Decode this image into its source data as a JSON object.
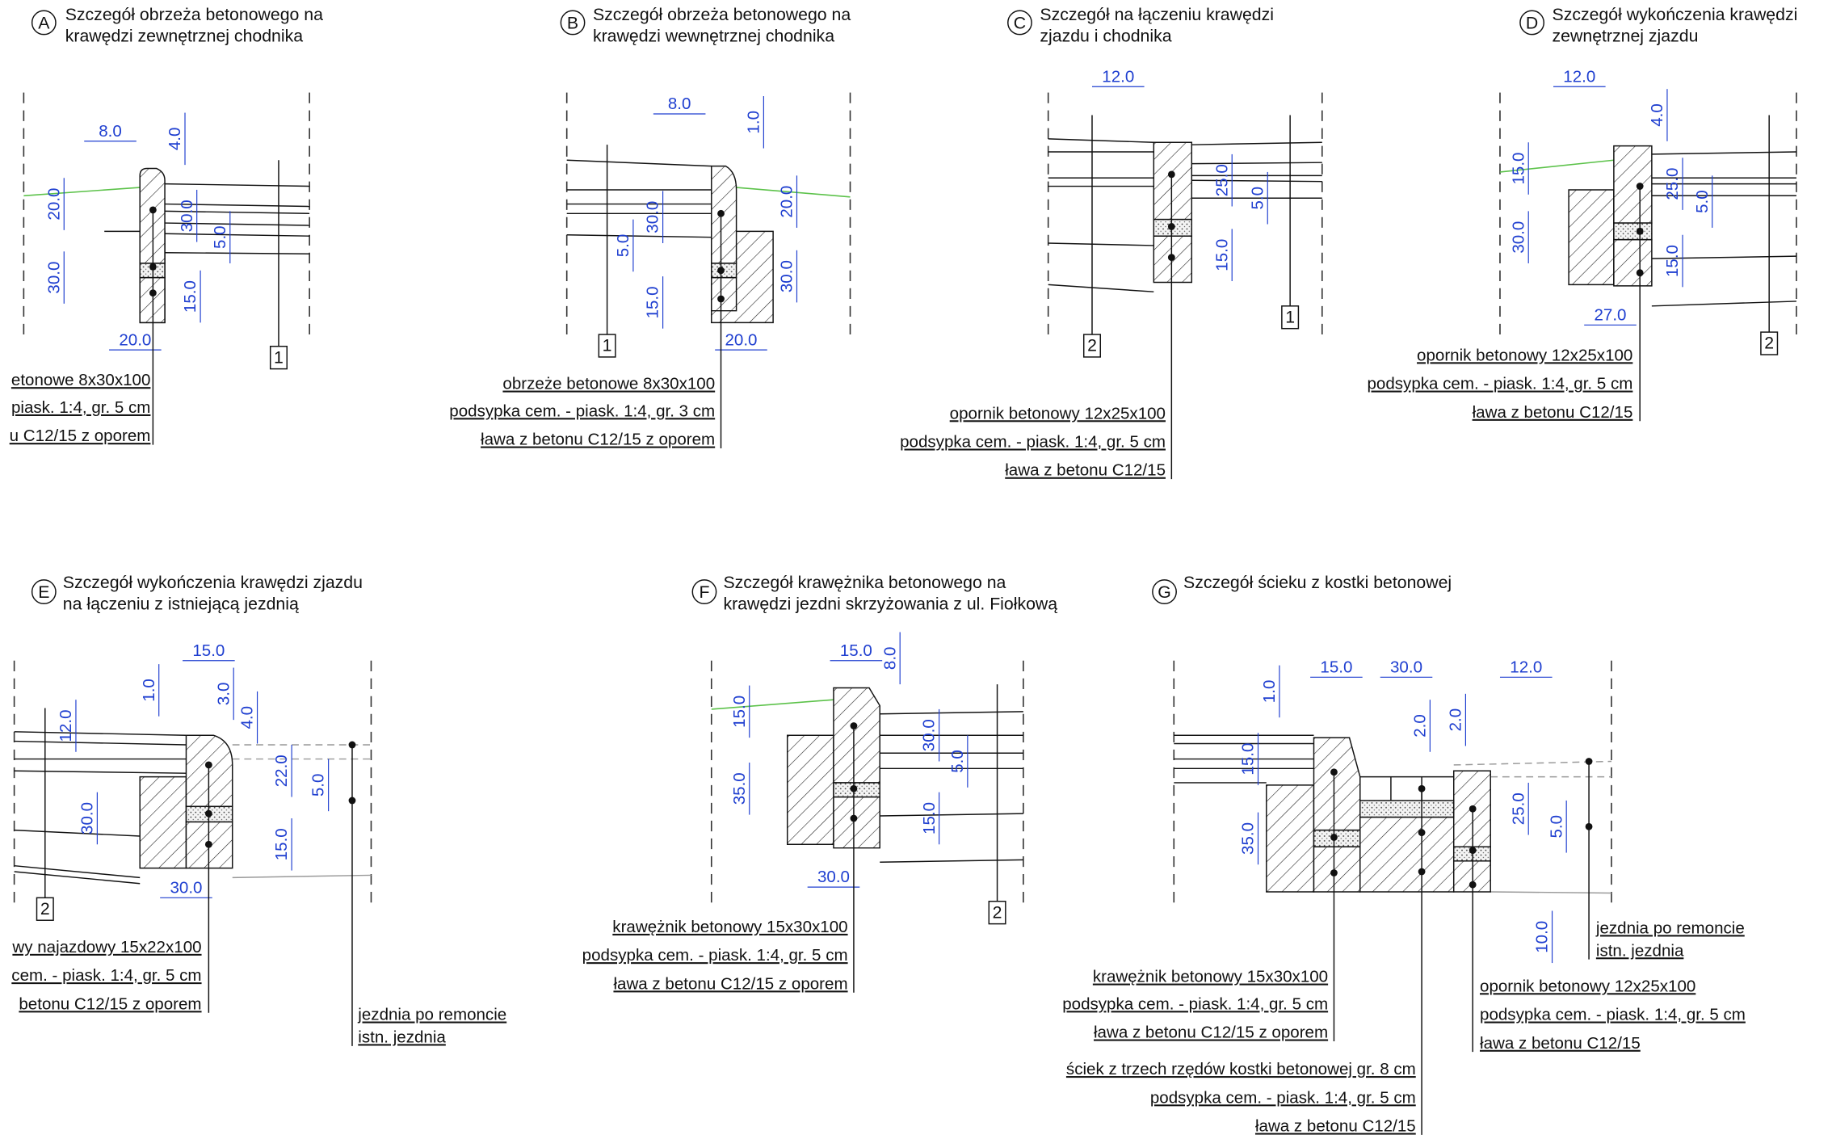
{
  "details": [
    {
      "letter": "A",
      "title": [
        "Szczegół obrzeża betonowego na",
        "krawędzi zewnętrznej chodnika"
      ],
      "dimensions": [
        "8.0",
        "4.0",
        "20.0",
        "30.0",
        "5.0",
        "30.0",
        "15.0",
        "20.0"
      ],
      "labels": [
        [
          "etonowe 8x30x100",
          "piask. 1:4, gr. 5 cm",
          "u C12/15 z oporem"
        ]
      ],
      "markers": [
        "1"
      ]
    },
    {
      "letter": "B",
      "title": [
        "Szczegół obrzeża betonowego na",
        "krawędzi wewnętrznej chodnika"
      ],
      "dimensions": [
        "8.0",
        "1.0",
        "30.0",
        "20.0",
        "5.0",
        "15.0",
        "30.0",
        "20.0"
      ],
      "labels": [
        [
          "obrzeże betonowe 8x30x100",
          "podsypka cem. - piask. 1:4, gr. 3 cm",
          "ława z betonu C12/15 z oporem"
        ]
      ],
      "markers": [
        "1"
      ]
    },
    {
      "letter": "C",
      "title": [
        "Szczegół na łączeniu krawędzi",
        "zjazdu i chodnika"
      ],
      "dimensions": [
        "12.0",
        "25.0",
        "5.0",
        "15.0"
      ],
      "labels": [
        [
          "opornik betonowy 12x25x100",
          "podsypka cem. - piask. 1:4, gr. 5 cm",
          "ława z betonu C12/15"
        ]
      ],
      "markers": [
        "2",
        "1"
      ]
    },
    {
      "letter": "D",
      "title": [
        "Szczegół wykończenia krawędzi",
        "zewnętrznej zjazdu"
      ],
      "dimensions": [
        "12.0",
        "4.0",
        "15.0",
        "25.0",
        "5.0",
        "30.0",
        "15.0",
        "27.0"
      ],
      "labels": [
        [
          "opornik betonowy 12x25x100",
          "podsypka cem. - piask. 1:4, gr. 5 cm",
          "ława z betonu C12/15"
        ]
      ],
      "markers": [
        "2"
      ]
    },
    {
      "letter": "E",
      "title": [
        "Szczegół wykończenia krawędzi zjazdu",
        "na łączeniu z istniejącą jezdnią"
      ],
      "dimensions": [
        "15.0",
        "1.0",
        "3.0",
        "12.0",
        "4.0",
        "22.0",
        "5.0",
        "30.0",
        "15.0",
        "30.0"
      ],
      "labels": [
        [
          "wy najazdowy 15x22x100",
          "cem. - piask. 1:4, gr. 5 cm",
          "betonu C12/15 z oporem"
        ],
        [
          "jezdnia po remoncie",
          "istn. jezdnia"
        ]
      ],
      "markers": [
        "2"
      ]
    },
    {
      "letter": "F",
      "title": [
        "Szczegół krawężnika betonowego na",
        "krawędzi jezdni skrzyżowania z ul. Fiołkową"
      ],
      "dimensions": [
        "15.0",
        "8.0",
        "15.0",
        "30.0",
        "5.0",
        "35.0",
        "15.0",
        "30.0"
      ],
      "labels": [
        [
          "krawężnik betonowy 15x30x100",
          "podsypka cem. - piask. 1:4, gr. 5 cm",
          "ława z betonu C12/15 z oporem"
        ]
      ],
      "markers": [
        "2"
      ]
    },
    {
      "letter": "G",
      "title": [
        "Szczegół ścieku z kostki betonowej"
      ],
      "dimensions": [
        "1.0",
        "15.0",
        "30.0",
        "12.0",
        "2.0",
        "2.0",
        "15.0",
        "25.0",
        "5.0",
        "35.0",
        "10.0"
      ],
      "labels": [
        [
          "krawężnik betonowy 15x30x100",
          "podsypka cem. - piask. 1:4, gr. 5 cm",
          "ława z betonu C12/15 z oporem"
        ],
        [
          "ściek z trzech rzędów kostki betonowej gr. 8 cm",
          "podsypka cem. - piask. 1:4, gr. 5 cm",
          "ława z betonu C12/15"
        ],
        [
          "opornik betonowy 12x25x100",
          "podsypka cem. - piask. 1:4, gr. 5 cm",
          "ława z betonu C12/15"
        ],
        [
          "jezdnia po remoncie",
          "istn. jezdnia"
        ]
      ],
      "markers": []
    }
  ]
}
